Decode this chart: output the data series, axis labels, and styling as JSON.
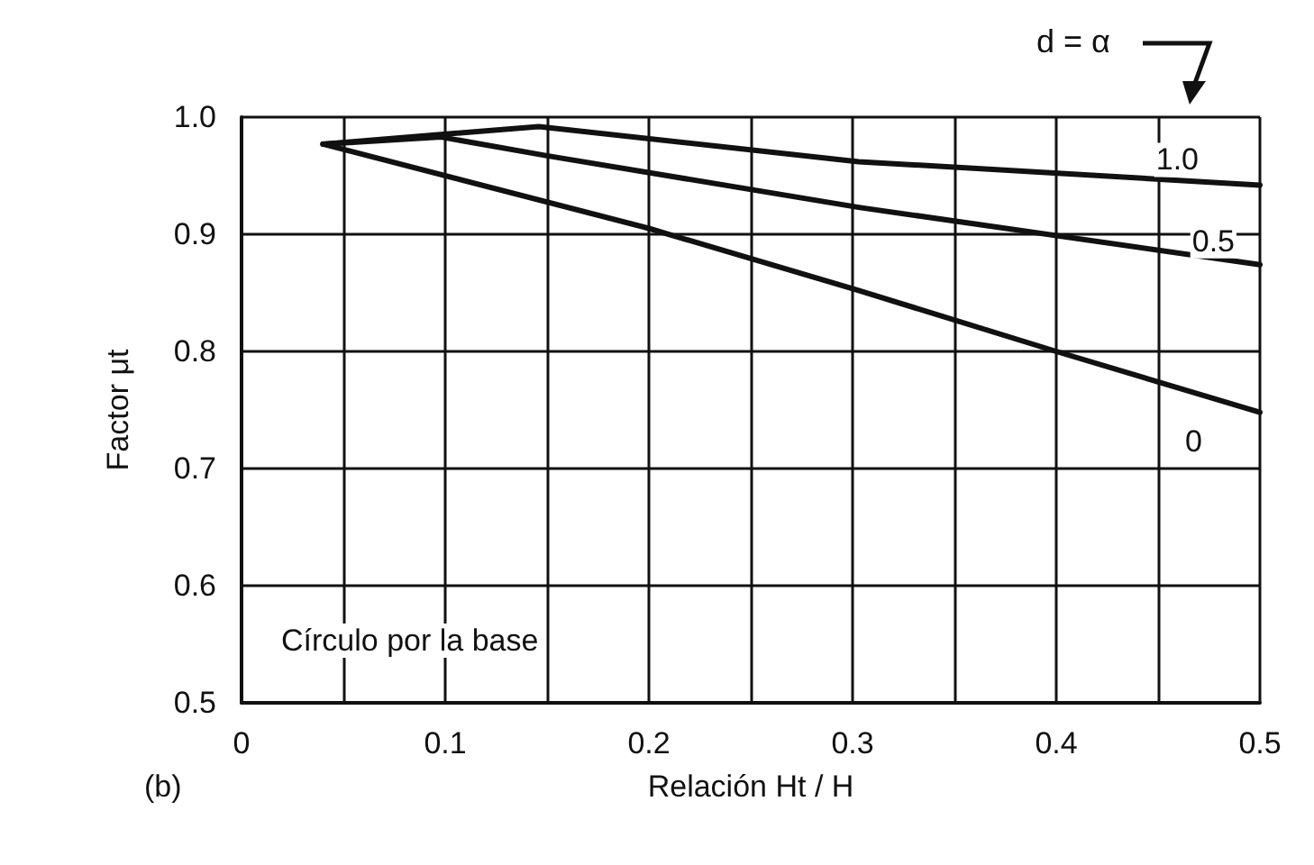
{
  "chart_data": {
    "type": "line",
    "xlabel": "Relación Ht / H",
    "ylabel": "Factor μt",
    "legend_title": "d = α",
    "annotations": [
      "Círculo por la base",
      "(b)"
    ],
    "xlim": [
      0,
      0.5
    ],
    "ylim": [
      0.5,
      1.0
    ],
    "xticks": [
      0,
      {
        "value": 0.05,
        "label": null
      },
      0.1,
      {
        "value": 0.15,
        "label": null
      },
      0.2,
      {
        "value": 0.25,
        "label": null
      },
      0.3,
      {
        "value": 0.35,
        "label": null
      },
      0.4,
      {
        "value": 0.45,
        "label": null
      },
      0.5
    ],
    "yticks": [
      0.5,
      0.6,
      0.7,
      0.8,
      0.9,
      {
        "value": 1.0,
        "label": "1.0"
      }
    ],
    "grid": true,
    "legend": false,
    "marker": "none",
    "line_style": "solid",
    "series": [
      {
        "name": "1.0",
        "color": "#111111",
        "x": [
          0.04,
          0.146,
          0.303,
          0.5
        ],
        "values": [
          0.977,
          0.992,
          0.962,
          0.942
        ]
      },
      {
        "name": "0.5",
        "color": "#111111",
        "x": [
          0.04,
          0.098,
          0.15,
          0.303,
          0.5
        ],
        "values": [
          0.977,
          0.983,
          0.967,
          0.923,
          0.874
        ]
      },
      {
        "name": "0",
        "color": "#111111",
        "x": [
          0.04,
          0.2,
          0.303,
          0.4,
          0.5
        ],
        "values": [
          0.977,
          0.905,
          0.852,
          0.8,
          0.748
        ]
      }
    ]
  }
}
